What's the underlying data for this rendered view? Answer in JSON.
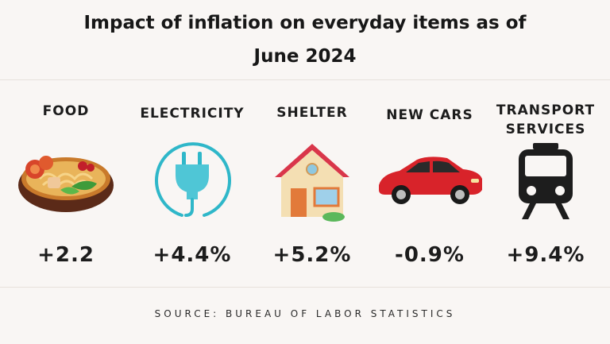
{
  "title": {
    "line1": "Impact of inflation on everyday items as of",
    "line2": "June 2024"
  },
  "items": [
    {
      "label": "FOOD",
      "value": "+2.2",
      "icon": "food-bowl-icon"
    },
    {
      "label": "ELECTRICITY",
      "value": "+4.4%",
      "icon": "electric-plug-icon"
    },
    {
      "label": "SHELTER",
      "value": "+5.2%",
      "icon": "house-icon"
    },
    {
      "label": "NEW CARS",
      "value": "-0.9%",
      "icon": "car-icon"
    },
    {
      "label": "TRANSPORT\nSERVICES",
      "value": "+9.4%",
      "icon": "train-icon"
    }
  ],
  "source": "SOURCE: BUREAU OF LABOR STATISTICS",
  "colors": {
    "background": "#f9f6f4",
    "plug": "#2fb7c9",
    "roof": "#d9364a",
    "car": "#d8232a",
    "train": "#1d1d1d"
  }
}
